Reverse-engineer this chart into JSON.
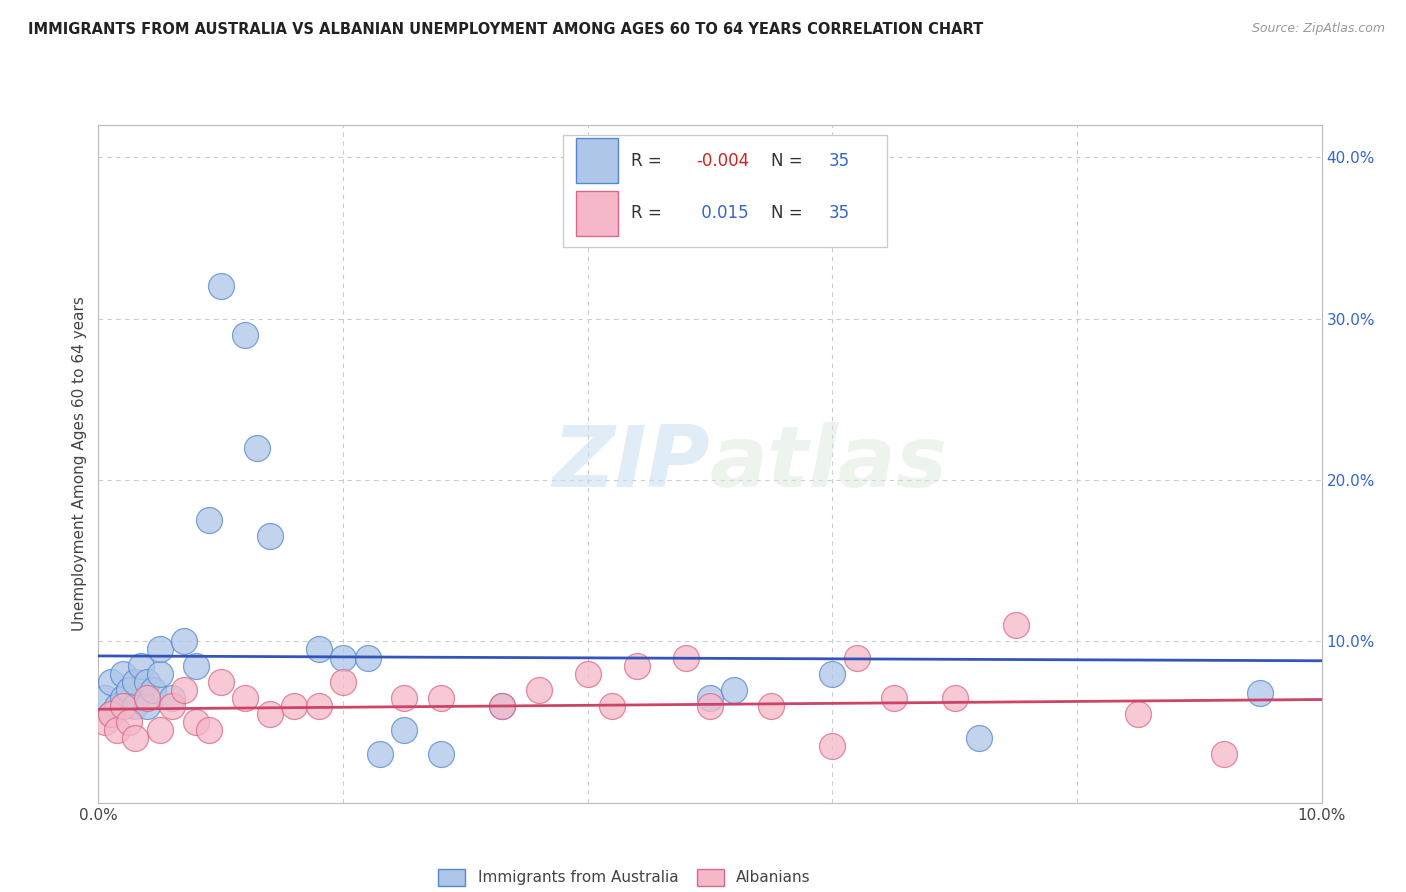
{
  "title": "IMMIGRANTS FROM AUSTRALIA VS ALBANIAN UNEMPLOYMENT AMONG AGES 60 TO 64 YEARS CORRELATION CHART",
  "source": "Source: ZipAtlas.com",
  "ylabel": "Unemployment Among Ages 60 to 64 years",
  "xlim": [
    0.0,
    0.1
  ],
  "ylim": [
    0.0,
    0.42
  ],
  "xtick_vals": [
    0.0,
    0.02,
    0.04,
    0.06,
    0.08,
    0.1
  ],
  "xtick_labels": [
    "0.0%",
    "",
    "",
    "",
    "",
    "10.0%"
  ],
  "ytick_vals": [
    0.0,
    0.1,
    0.2,
    0.3,
    0.4
  ],
  "ytick_labels_right": [
    "",
    "10.0%",
    "20.0%",
    "30.0%",
    "40.0%"
  ],
  "background_color": "#ffffff",
  "grid_color": "#cccccc",
  "watermark_text": "ZIPatlas",
  "watermark_color": "#ddeeff",
  "legend_label1": "Immigrants from Australia",
  "legend_label2": "Albanians",
  "R1": "-0.004",
  "N1": "35",
  "R2": "0.015",
  "N2": "35",
  "color_blue_fill": "#aec6e8",
  "color_pink_fill": "#f4b8c8",
  "color_blue_edge": "#5588cc",
  "color_pink_edge": "#dd6688",
  "line_color_blue": "#3355bb",
  "line_color_pink": "#cc4466",
  "blue_x": [
    0.0005,
    0.001,
    0.001,
    0.0015,
    0.002,
    0.002,
    0.0025,
    0.003,
    0.003,
    0.0035,
    0.004,
    0.004,
    0.0045,
    0.005,
    0.005,
    0.006,
    0.007,
    0.008,
    0.009,
    0.01,
    0.012,
    0.013,
    0.014,
    0.018,
    0.02,
    0.022,
    0.023,
    0.025,
    0.028,
    0.033,
    0.05,
    0.052,
    0.06,
    0.072,
    0.095
  ],
  "blue_y": [
    0.065,
    0.055,
    0.075,
    0.06,
    0.065,
    0.08,
    0.07,
    0.06,
    0.075,
    0.085,
    0.06,
    0.075,
    0.07,
    0.08,
    0.095,
    0.065,
    0.1,
    0.085,
    0.175,
    0.32,
    0.29,
    0.22,
    0.165,
    0.095,
    0.09,
    0.09,
    0.03,
    0.045,
    0.03,
    0.06,
    0.065,
    0.07,
    0.08,
    0.04,
    0.068
  ],
  "pink_x": [
    0.0005,
    0.001,
    0.0015,
    0.002,
    0.0025,
    0.003,
    0.004,
    0.005,
    0.006,
    0.007,
    0.008,
    0.009,
    0.01,
    0.012,
    0.014,
    0.016,
    0.018,
    0.02,
    0.025,
    0.028,
    0.033,
    0.036,
    0.04,
    0.042,
    0.044,
    0.048,
    0.05,
    0.055,
    0.06,
    0.062,
    0.065,
    0.07,
    0.075,
    0.085,
    0.092
  ],
  "pink_y": [
    0.05,
    0.055,
    0.045,
    0.06,
    0.05,
    0.04,
    0.065,
    0.045,
    0.06,
    0.07,
    0.05,
    0.045,
    0.075,
    0.065,
    0.055,
    0.06,
    0.06,
    0.075,
    0.065,
    0.065,
    0.06,
    0.07,
    0.08,
    0.06,
    0.085,
    0.09,
    0.06,
    0.06,
    0.035,
    0.09,
    0.065,
    0.065,
    0.11,
    0.055,
    0.03
  ],
  "blue_trend_y0": 0.091,
  "blue_trend_y1": 0.088,
  "pink_trend_y0": 0.058,
  "pink_trend_y1": 0.064
}
